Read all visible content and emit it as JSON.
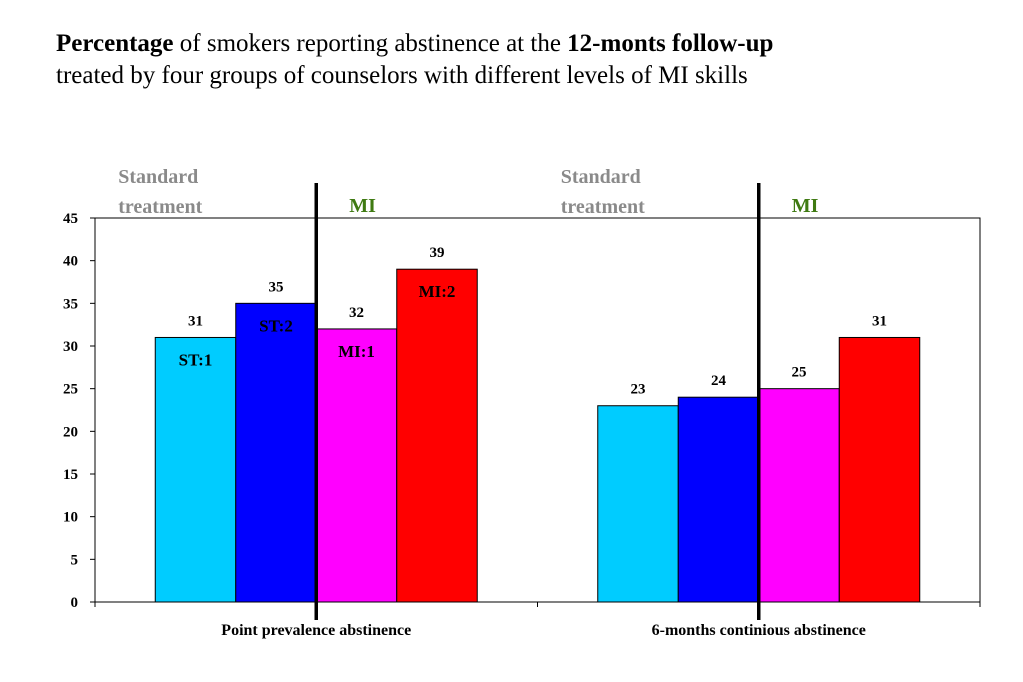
{
  "title": {
    "bold1": "Percentage",
    "text1": " of smokers reporting abstinence at the ",
    "bold2": "12-monts follow-up",
    "line2": "treated by four groups of counselors with different levels of MI skills"
  },
  "group_labels": {
    "standard_line1": "Standard",
    "standard_line2": "treatment",
    "mi": "MI"
  },
  "bar_labels": [
    "ST:1",
    "ST:2",
    "MI:1",
    "MI:2"
  ],
  "colors": {
    "ST:1": "#00ccff",
    "ST:2": "#0000ff",
    "MI:1": "#ff00ff",
    "MI:2": "#ff0000",
    "standard_label": "#8a8a8a",
    "mi_label": "#3f7a12"
  },
  "chart_data": {
    "type": "bar",
    "categories": [
      "Point prevalence abstinence",
      "6-months continious abstinence"
    ],
    "series": [
      {
        "values": [
          31,
          23
        ]
      },
      {
        "values": [
          35,
          24
        ]
      },
      {
        "values": [
          32,
          25
        ]
      },
      {
        "values": [
          39,
          31
        ]
      }
    ],
    "ylim": [
      0,
      45
    ],
    "yticks": [
      0,
      5,
      10,
      15,
      20,
      25,
      30,
      35,
      40,
      45
    ],
    "grid": false,
    "legend": "none"
  }
}
